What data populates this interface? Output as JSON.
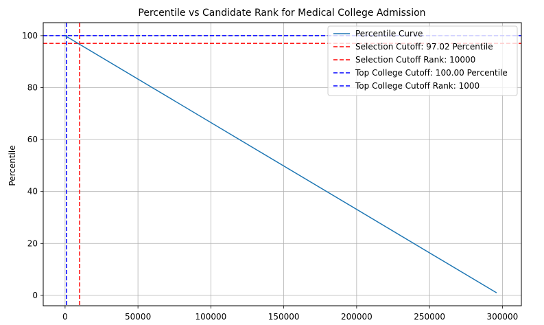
{
  "chart_data": {
    "type": "line",
    "title": "Percentile vs Candidate Rank for Medical College Admission",
    "xlabel": "",
    "ylabel": "Percentile",
    "xlim": [
      -15000,
      313000
    ],
    "ylim": [
      -4,
      105
    ],
    "x_ticks": [
      0,
      50000,
      100000,
      150000,
      200000,
      250000,
      300000
    ],
    "y_ticks": [
      0,
      20,
      40,
      60,
      80,
      100
    ],
    "grid": true,
    "legend_position": "top-right",
    "series": [
      {
        "name": "Percentile Curve",
        "color": "#1f77b4",
        "style": "solid",
        "x": [
          1,
          296000
        ],
        "y": [
          100,
          1
        ]
      }
    ],
    "reference_lines": [
      {
        "name": "Selection Cutoff: 97.02 Percentile",
        "orientation": "horizontal",
        "value": 97.02,
        "color": "#ff0000",
        "style": "dashed"
      },
      {
        "name": "Selection Cutoff Rank: 10000",
        "orientation": "vertical",
        "value": 10000,
        "color": "#ff0000",
        "style": "dashed"
      },
      {
        "name": "Top College Cutoff: 100.00 Percentile",
        "orientation": "horizontal",
        "value": 100.0,
        "color": "#0000ff",
        "style": "dashed"
      },
      {
        "name": "Top College Cutoff Rank: 1000",
        "orientation": "vertical",
        "value": 1000,
        "color": "#0000ff",
        "style": "dashed"
      }
    ]
  }
}
